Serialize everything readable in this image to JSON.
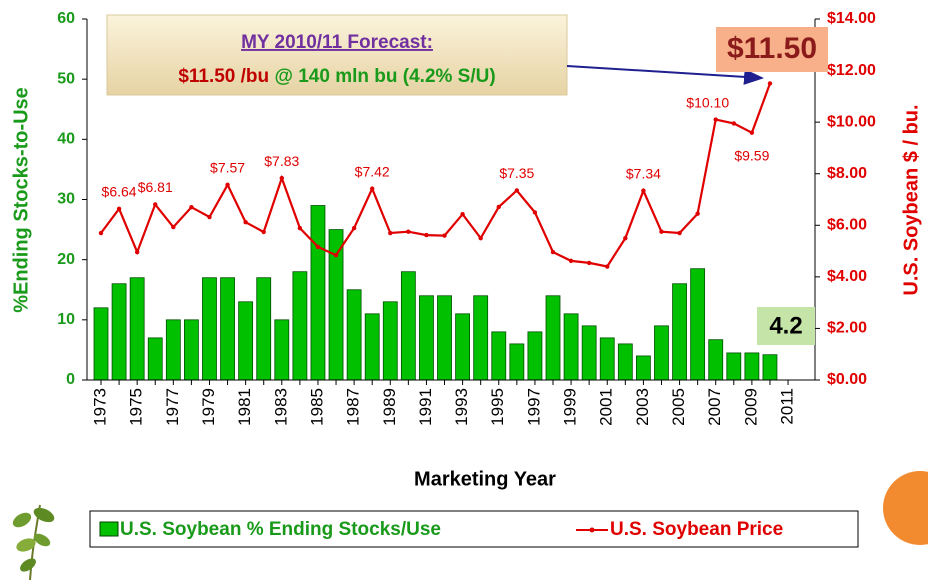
{
  "chart_data": {
    "type": "bar-line",
    "x_label": "Marketing Year",
    "y_label": "%Ending Stocks-to-Use",
    "y2_label": "U.S. Soybean $ / bu.",
    "categories": [
      "1973",
      null,
      "1975",
      null,
      "1977",
      null,
      "1979",
      null,
      "1981",
      null,
      "1983",
      null,
      "1985",
      null,
      "1987",
      null,
      "1989",
      null,
      "1991",
      null,
      "1993",
      null,
      "1995",
      null,
      "1997",
      null,
      "1999",
      null,
      "2001",
      null,
      "2003",
      null,
      "2005",
      null,
      "2007",
      null,
      "2009",
      null,
      "2011"
    ],
    "series": [
      {
        "name": "U.S. Soybean % Ending Stocks/Use",
        "type": "bar",
        "color": "#00c000",
        "values": [
          12,
          16,
          17,
          7,
          10,
          10,
          17,
          17,
          13,
          17,
          10,
          18,
          29,
          25,
          15,
          11,
          13,
          18,
          14,
          14,
          11,
          14,
          8,
          6,
          8,
          14,
          11,
          9,
          7,
          6,
          4,
          9,
          16,
          18.5,
          6.7,
          4.5,
          4.5,
          4.2,
          null
        ]
      },
      {
        "name": "U.S. Soybean Price",
        "type": "line",
        "axis": "y2",
        "color": "#e00000",
        "values": [
          5.7,
          6.64,
          4.96,
          6.81,
          5.93,
          6.7,
          6.32,
          7.57,
          6.12,
          5.74,
          7.83,
          5.89,
          5.16,
          4.84,
          5.89,
          7.42,
          5.7,
          5.75,
          5.62,
          5.6,
          6.43,
          5.5,
          6.71,
          7.35,
          6.5,
          4.96,
          4.62,
          4.54,
          4.4,
          5.5,
          7.34,
          5.75,
          5.7,
          6.45,
          10.1,
          9.95,
          9.59,
          11.5,
          null
        ],
        "value_labels": [
          null,
          "$6.64",
          null,
          "$6.81",
          null,
          null,
          null,
          "$7.57",
          null,
          null,
          "$7.83",
          null,
          null,
          null,
          null,
          "$7.42",
          null,
          null,
          null,
          null,
          null,
          null,
          null,
          "$7.35",
          null,
          null,
          null,
          null,
          null,
          null,
          "$7.34",
          null,
          null,
          null,
          "$10.10",
          null,
          "$9.59",
          null,
          null
        ]
      }
    ],
    "ylim": [
      0,
      60
    ],
    "yticks": [
      0,
      10,
      20,
      30,
      40,
      50,
      60
    ],
    "y2lim": [
      0,
      14
    ],
    "y2ticks": [
      {
        "value": 0,
        "label": "$0.00"
      },
      {
        "value": 2,
        "label": "$2.00"
      },
      {
        "value": 4,
        "label": "$4.00"
      },
      {
        "value": 6,
        "label": "$6.00"
      },
      {
        "value": 8,
        "label": "$8.00"
      },
      {
        "value": 10,
        "label": "$10.00"
      },
      {
        "value": 12,
        "label": "$12.00"
      },
      {
        "value": 14,
        "label": "$14.00"
      }
    ],
    "annotations": {
      "forecast_title": "MY 2010/11 Forecast:",
      "forecast_price": "$11.50 /bu",
      "forecast_detail": "@ 140 mln bu (4.2% S/U)",
      "price_callout": "$11.50",
      "stocks_callout": "4.2"
    }
  }
}
